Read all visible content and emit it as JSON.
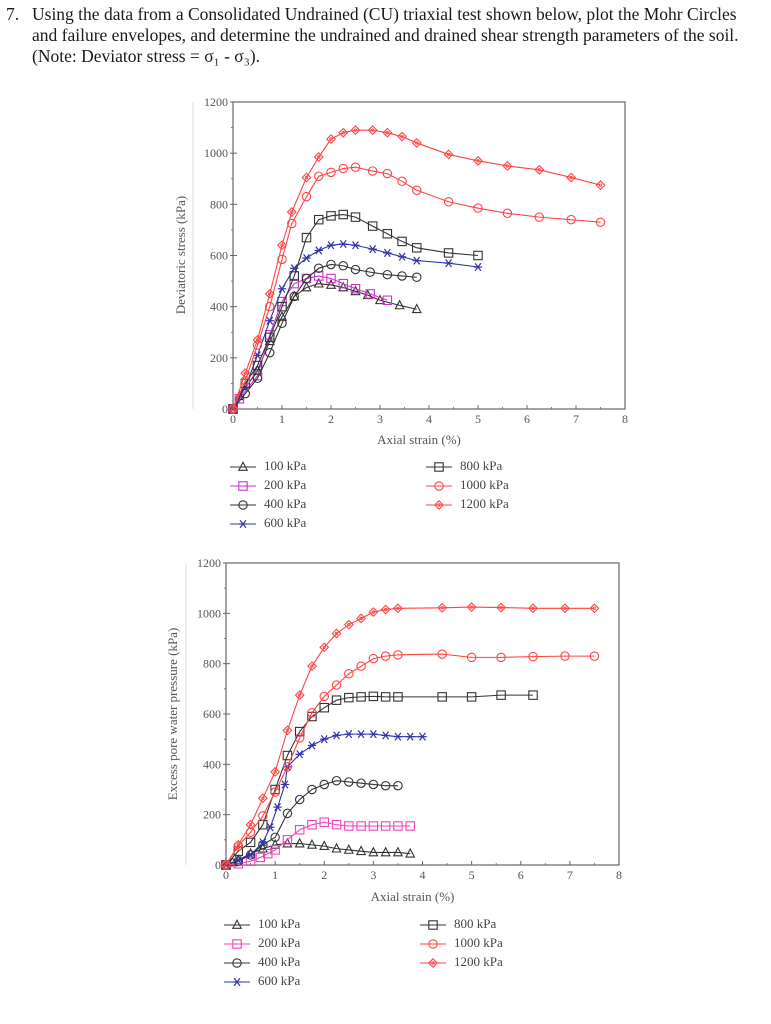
{
  "question": {
    "number": "7.",
    "text": "Using the data from a Consolidated Undrained (CU) triaxial test shown below, plot the Mohr Circles and failure envelopes, and determine the undrained and drained shear strength parameters of the soil. (Note: Deviator stress = σ₁ - σ₃)."
  },
  "chart_data": [
    {
      "type": "line",
      "title": "",
      "xlabel": "Axial strain (%)",
      "ylabel": "Deviatoric stress (kPa)",
      "xlim": [
        0,
        8
      ],
      "ylim": [
        0,
        1200
      ],
      "xticks": [
        "0",
        "1",
        "2",
        "3",
        "4",
        "5",
        "6",
        "7",
        "8"
      ],
      "yticks": [
        "0",
        "200",
        "400",
        "600",
        "800",
        "1000",
        "1200"
      ],
      "grid": false,
      "legend_placement": "below",
      "series": [
        {
          "name": "100 kPa",
          "color": "#333333",
          "marker": "triangle",
          "x": [
            0,
            0.13,
            0.5,
            0.75,
            1.0,
            1.25,
            1.5,
            1.75,
            2.0,
            2.25,
            2.5,
            2.75,
            3.0,
            3.4,
            3.75
          ],
          "y": [
            0,
            50,
            150,
            265,
            360,
            440,
            475,
            490,
            485,
            475,
            460,
            445,
            425,
            405,
            390
          ]
        },
        {
          "name": "200 kPa",
          "color": "#cc33cc",
          "marker": "square",
          "x": [
            0,
            0.13,
            0.5,
            0.75,
            1.0,
            1.25,
            1.5,
            1.75,
            2.0,
            2.25,
            2.5,
            2.8,
            3.15
          ],
          "y": [
            0,
            40,
            130,
            290,
            420,
            490,
            510,
            520,
            510,
            490,
            470,
            450,
            425
          ]
        },
        {
          "name": "400 kPa",
          "color": "#333333",
          "marker": "circle",
          "x": [
            0,
            0.25,
            0.5,
            0.75,
            1.0,
            1.25,
            1.5,
            1.75,
            2.0,
            2.25,
            2.5,
            2.8,
            3.15,
            3.45,
            3.75
          ],
          "y": [
            0,
            60,
            120,
            220,
            335,
            440,
            510,
            550,
            565,
            560,
            545,
            535,
            525,
            520,
            515
          ]
        },
        {
          "name": "600 kPa",
          "color": "#3333aa",
          "marker": "star",
          "x": [
            0,
            0.25,
            0.5,
            0.75,
            1.0,
            1.25,
            1.5,
            1.75,
            2.0,
            2.25,
            2.5,
            2.85,
            3.15,
            3.45,
            3.75,
            4.4,
            5.0
          ],
          "y": [
            0,
            85,
            210,
            345,
            470,
            550,
            590,
            620,
            640,
            645,
            640,
            625,
            610,
            595,
            580,
            570,
            555
          ]
        },
        {
          "name": "800 kPa",
          "color": "#333333",
          "marker": "square",
          "x": [
            0,
            0.25,
            0.5,
            0.75,
            1.0,
            1.25,
            1.5,
            1.75,
            2.0,
            2.25,
            2.5,
            2.85,
            3.15,
            3.45,
            3.75,
            4.4,
            5.0
          ],
          "y": [
            0,
            100,
            170,
            280,
            400,
            520,
            670,
            740,
            755,
            760,
            750,
            715,
            685,
            655,
            630,
            610,
            600
          ]
        },
        {
          "name": "1000 kPa",
          "color": "#ff4444",
          "marker": "circle",
          "x": [
            0,
            0.25,
            0.5,
            0.75,
            1.0,
            1.2,
            1.5,
            1.75,
            2.0,
            2.25,
            2.5,
            2.85,
            3.15,
            3.45,
            3.75,
            4.4,
            5.0,
            5.6,
            6.25,
            6.9,
            7.5
          ],
          "y": [
            0,
            110,
            250,
            400,
            585,
            725,
            830,
            910,
            925,
            940,
            945,
            930,
            920,
            890,
            855,
            810,
            785,
            765,
            750,
            740,
            730
          ]
        },
        {
          "name": "1200 kPa",
          "color": "#ff4444",
          "marker": "diamond",
          "x": [
            0,
            0.25,
            0.5,
            0.75,
            1.0,
            1.2,
            1.5,
            1.75,
            2.0,
            2.25,
            2.5,
            2.85,
            3.15,
            3.45,
            3.75,
            4.4,
            5.0,
            5.6,
            6.25,
            6.9,
            7.5
          ],
          "y": [
            0,
            140,
            270,
            450,
            640,
            770,
            905,
            985,
            1055,
            1080,
            1090,
            1090,
            1080,
            1065,
            1040,
            995,
            970,
            950,
            935,
            905,
            875
          ]
        }
      ]
    },
    {
      "type": "line",
      "title": "",
      "xlabel": "Axial strain (%)",
      "ylabel": "Excess pore water pressure (kPa)",
      "xlim": [
        0,
        8
      ],
      "ylim": [
        0,
        1200
      ],
      "xticks": [
        "0",
        "1",
        "2",
        "3",
        "4",
        "5",
        "6",
        "7",
        "8"
      ],
      "yticks": [
        "0",
        "200",
        "400",
        "600",
        "800",
        "1000",
        "1200"
      ],
      "grid": false,
      "legend_placement": "below",
      "series": [
        {
          "name": "100 kPa",
          "color": "#333333",
          "marker": "triangle",
          "x": [
            0,
            0.13,
            0.25,
            0.5,
            0.75,
            1.0,
            1.25,
            1.5,
            1.75,
            2.0,
            2.25,
            2.5,
            2.75,
            3.0,
            3.25,
            3.5,
            3.75
          ],
          "y": [
            0,
            10,
            20,
            45,
            65,
            80,
            85,
            85,
            80,
            75,
            65,
            60,
            55,
            50,
            50,
            50,
            45
          ]
        },
        {
          "name": "200 kPa",
          "color": "#ee44bb",
          "marker": "square",
          "x": [
            0,
            0.25,
            0.5,
            0.7,
            0.85,
            1.0,
            1.25,
            1.5,
            1.75,
            2.0,
            2.25,
            2.5,
            2.75,
            3.0,
            3.25,
            3.5,
            3.75
          ],
          "y": [
            0,
            5,
            15,
            30,
            45,
            60,
            100,
            140,
            160,
            170,
            160,
            155,
            155,
            155,
            155,
            155,
            155
          ]
        },
        {
          "name": "400 kPa",
          "color": "#333333",
          "marker": "circle",
          "x": [
            0,
            0.25,
            0.5,
            0.75,
            1.0,
            1.25,
            1.5,
            1.75,
            2.0,
            2.25,
            2.5,
            2.75,
            3.0,
            3.25,
            3.5
          ],
          "y": [
            0,
            15,
            40,
            80,
            110,
            205,
            260,
            300,
            320,
            335,
            330,
            325,
            320,
            315,
            315
          ]
        },
        {
          "name": "600 kPa",
          "color": "#3333aa",
          "marker": "star",
          "x": [
            0,
            0.25,
            0.5,
            0.75,
            0.9,
            1.05,
            1.2,
            1.25,
            1.5,
            1.75,
            2.0,
            2.25,
            2.5,
            2.75,
            3.0,
            3.25,
            3.5,
            3.75,
            4.0
          ],
          "y": [
            0,
            20,
            40,
            90,
            150,
            230,
            320,
            390,
            440,
            475,
            500,
            515,
            520,
            520,
            520,
            515,
            510,
            510,
            510
          ]
        },
        {
          "name": "800 kPa",
          "color": "#333333",
          "marker": "square",
          "x": [
            0,
            0.25,
            0.5,
            0.75,
            1.0,
            1.25,
            1.5,
            1.75,
            2.0,
            2.25,
            2.5,
            2.75,
            3.0,
            3.25,
            3.5,
            4.4,
            5.0,
            5.6,
            6.25
          ],
          "y": [
            0,
            55,
            90,
            160,
            300,
            435,
            530,
            590,
            625,
            655,
            665,
            668,
            670,
            668,
            668,
            668,
            668,
            675,
            675
          ]
        },
        {
          "name": "1000 kPa",
          "color": "#ff4444",
          "marker": "circle",
          "x": [
            0,
            0.25,
            0.5,
            0.75,
            1.0,
            1.25,
            1.5,
            1.75,
            2.0,
            2.25,
            2.5,
            2.75,
            3.0,
            3.25,
            3.5,
            4.4,
            5.0,
            5.6,
            6.25,
            6.9,
            7.5
          ],
          "y": [
            0,
            75,
            130,
            195,
            290,
            390,
            505,
            605,
            670,
            715,
            760,
            790,
            820,
            830,
            835,
            838,
            825,
            825,
            828,
            830,
            830
          ]
        },
        {
          "name": "1200 kPa",
          "color": "#ff4444",
          "marker": "diamond",
          "x": [
            0,
            0.25,
            0.5,
            0.75,
            1.0,
            1.25,
            1.5,
            1.75,
            2.0,
            2.25,
            2.5,
            2.75,
            3.0,
            3.25,
            3.5,
            4.4,
            5.0,
            5.6,
            6.25,
            6.9,
            7.5
          ],
          "y": [
            0,
            80,
            160,
            265,
            370,
            535,
            675,
            790,
            865,
            920,
            955,
            980,
            1005,
            1015,
            1020,
            1022,
            1025,
            1023,
            1020,
            1020,
            1020
          ]
        }
      ]
    }
  ]
}
